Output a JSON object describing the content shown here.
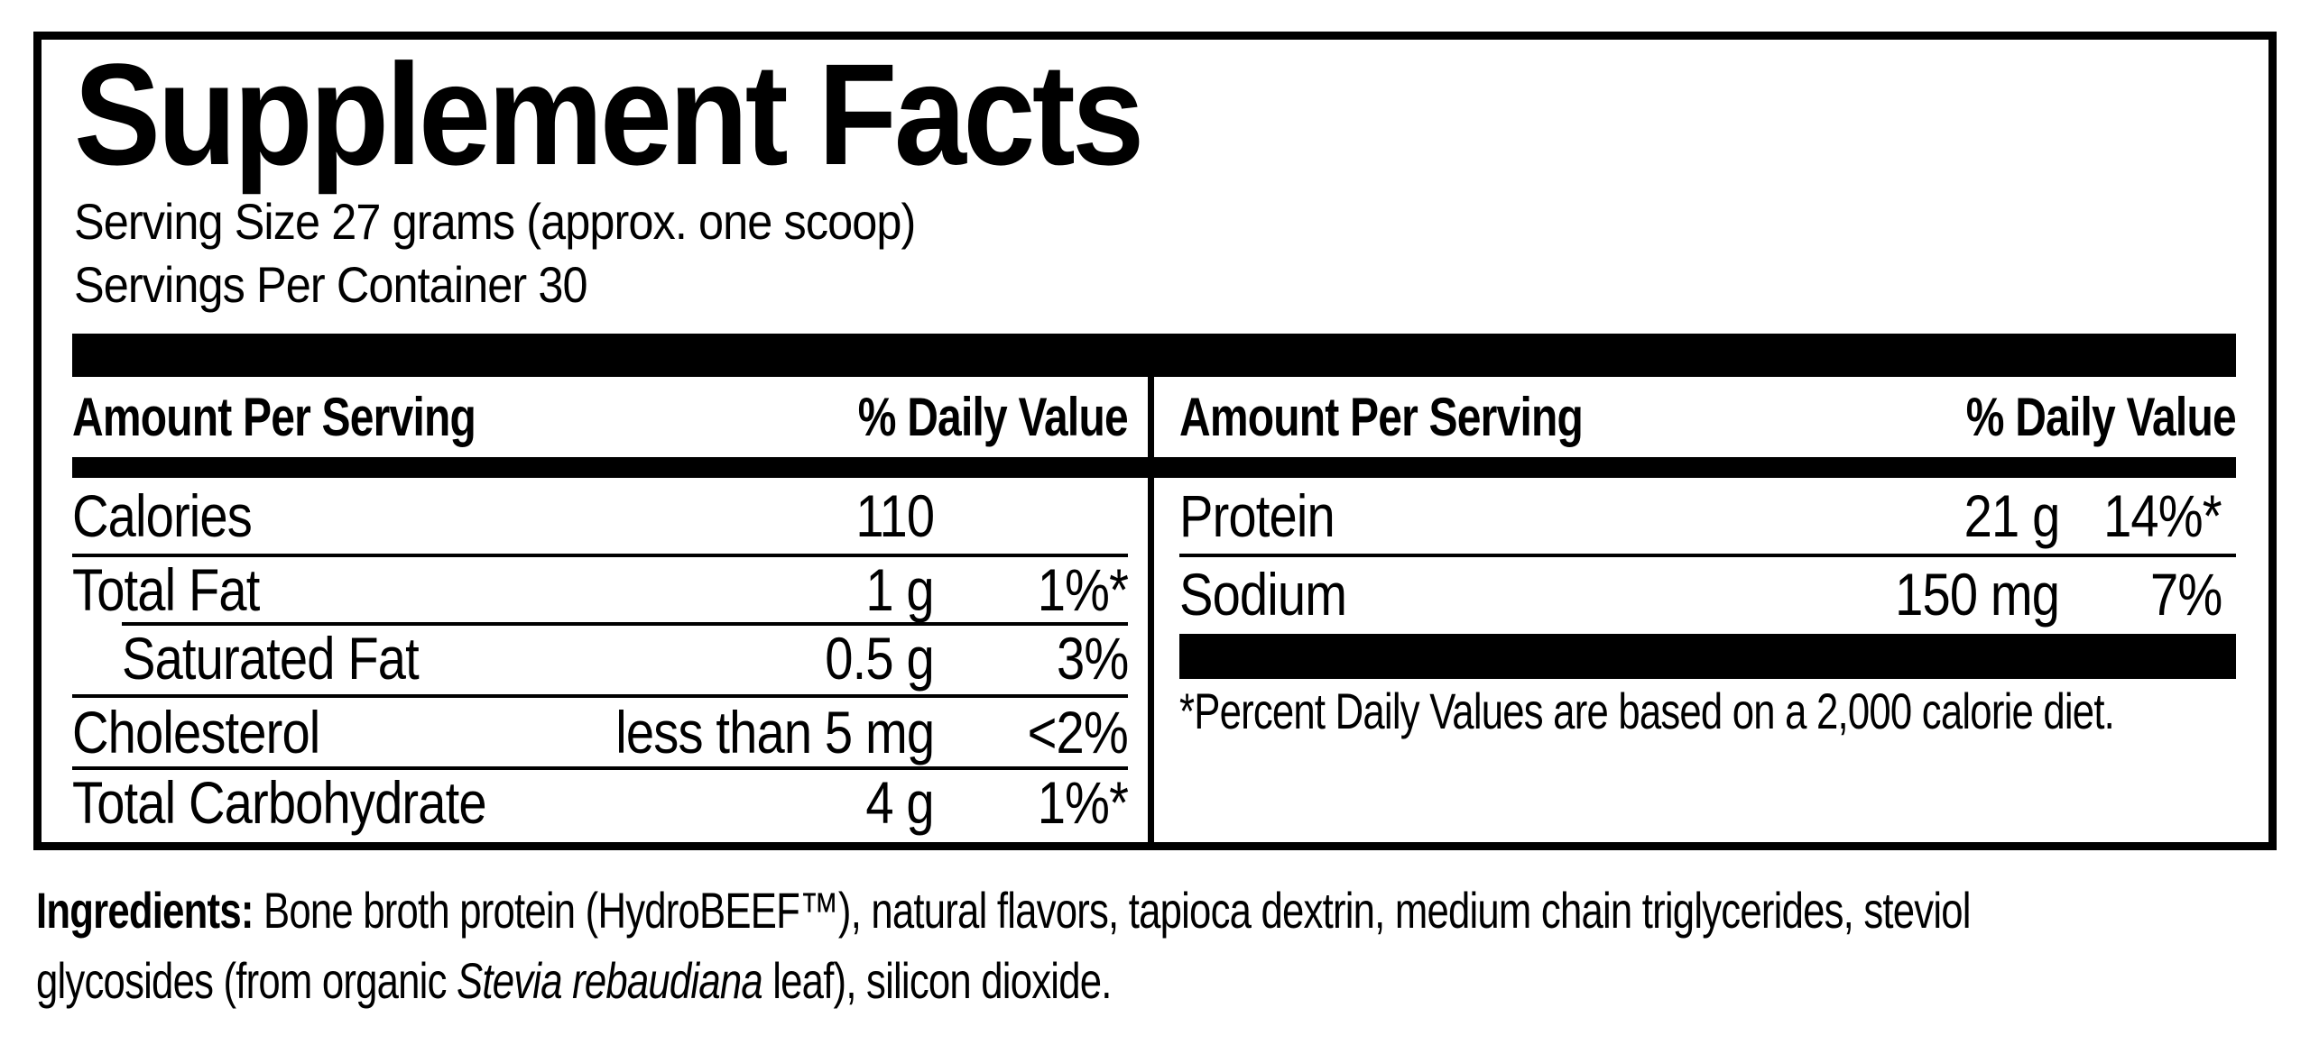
{
  "label": {
    "title": "Supplement Facts",
    "serving_size": "Serving Size 27 grams (approx. one scoop)",
    "servings_per_container": "Servings Per Container 30",
    "left_table": {
      "header": {
        "amount": "Amount Per Serving",
        "dv": "% Daily Value"
      },
      "rows": [
        {
          "name": "Calories",
          "amount": "110",
          "dv": ""
        },
        {
          "name": "Total Fat",
          "amount": "1 g",
          "dv": "1%*"
        },
        {
          "name": "Saturated Fat",
          "amount": "0.5 g",
          "dv": "3%"
        },
        {
          "name": "Cholesterol",
          "amount": "less than 5 mg",
          "dv": "<2%"
        },
        {
          "name": "Total Carbohydrate",
          "amount": "4 g",
          "dv": "1%*"
        }
      ]
    },
    "right_table": {
      "header": {
        "amount": "Amount Per Serving",
        "dv": "% Daily Value"
      },
      "rows": [
        {
          "name": "Protein",
          "amount": "21 g",
          "dv": "14%*"
        },
        {
          "name": "Sodium",
          "amount": "150 mg",
          "dv": "7%"
        }
      ],
      "footnote": "*Percent Daily Values are based on a 2,000 calorie diet."
    },
    "ingredients": {
      "lead": "Ingredients:",
      "line1_rest": " Bone broth protein (HydroBEEF™), natural flavors, tapioca dextrin, medium chain triglycerides, steviol",
      "line2_pre": "glycosides (from organic ",
      "line2_italic": "Stevia rebaudiana",
      "line2_post": " leaf), silicon dioxide."
    },
    "colors": {
      "ink": "#000000",
      "paper": "#ffffff"
    }
  }
}
